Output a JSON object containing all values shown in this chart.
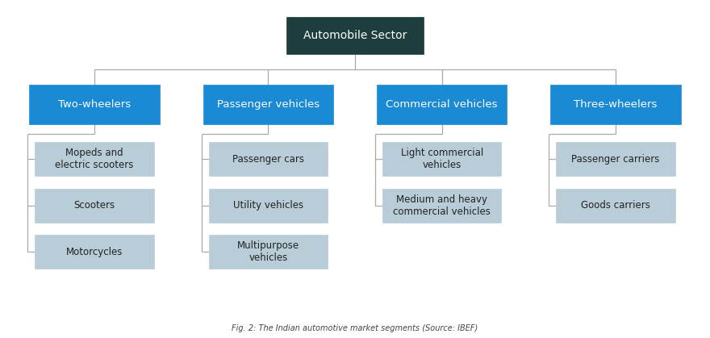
{
  "title": "Automobile Sector",
  "title_bg": "#1e3d3d",
  "title_color": "#ffffff",
  "level1_bg": "#1a8ad4",
  "level1_color": "#ffffff",
  "level2_bg": "#b8cdd8",
  "level2_color": "#222222",
  "line_color": "#aaaaaa",
  "background": "#ffffff",
  "caption": "Fig. 2: The Indian automotive market segments (Source: IBEF)",
  "columns": [
    {
      "header": "Two-wheelers",
      "children": [
        "Mopeds and\nelectric scooters",
        "Scooters",
        "Motorcycles"
      ]
    },
    {
      "header": "Passenger vehicles",
      "children": [
        "Passenger cars",
        "Utility vehicles",
        "Multipurpose\nvehicles"
      ]
    },
    {
      "header": "Commercial vehicles",
      "children": [
        "Light commercial\nvehicles",
        "Medium and heavy\ncommercial vehicles"
      ]
    },
    {
      "header": "Three-wheelers",
      "children": [
        "Passenger carriers",
        "Goods carriers"
      ]
    }
  ],
  "figsize": [
    8.8,
    4.19
  ],
  "dpi": 100
}
